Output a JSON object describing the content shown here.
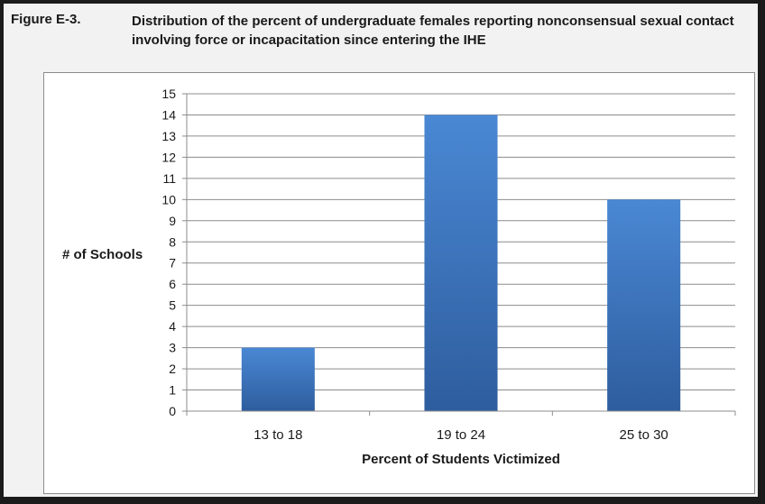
{
  "figure": {
    "label": "Figure E-3.",
    "title": "Distribution of the percent of undergraduate females reporting nonconsensual sexual contact involving force or incapacitation since entering the IHE"
  },
  "chart_data": {
    "type": "bar",
    "categories": [
      "13 to 18",
      "19 to 24",
      "25 to 30"
    ],
    "values": [
      3,
      14,
      10
    ],
    "title": "",
    "xlabel": "Percent of Students Victimized",
    "ylabel": "# of Schools",
    "ylim": [
      0,
      15
    ],
    "yticks": [
      0,
      1,
      2,
      3,
      4,
      5,
      6,
      7,
      8,
      9,
      10,
      11,
      12,
      13,
      14,
      15
    ],
    "grid": true,
    "legend": "none",
    "bar_color_top": "#4a88d4",
    "bar_color_bottom": "#2e5d9e",
    "grid_color": "#8c8c8c"
  }
}
